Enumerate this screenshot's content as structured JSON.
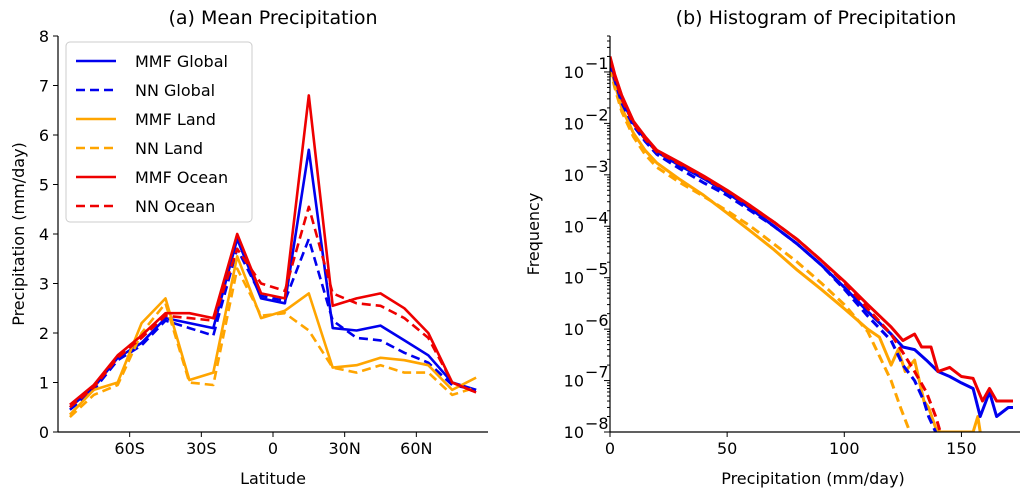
{
  "chart_data": [
    {
      "type": "line",
      "title": "(a) Mean Precipitation",
      "xlabel": "Latitude",
      "ylabel": "Precipitation (mm/day)",
      "xlim": [
        -90,
        90
      ],
      "ylim": [
        0,
        8
      ],
      "xticks": [
        {
          "value": -60,
          "label": "60S"
        },
        {
          "value": -30,
          "label": "30S"
        },
        {
          "value": 0,
          "label": "0"
        },
        {
          "value": 30,
          "label": "30N"
        },
        {
          "value": 60,
          "label": "60N"
        }
      ],
      "yticks": [
        "0",
        "1",
        "2",
        "3",
        "4",
        "5",
        "6",
        "7",
        "8"
      ],
      "legend_position": "upper-left",
      "x": [
        -85,
        -75,
        -65,
        -55,
        -45,
        -35,
        -25,
        -15,
        -5,
        5,
        15,
        25,
        35,
        45,
        55,
        65,
        75,
        85
      ],
      "series": [
        {
          "name": "MMF Global",
          "color": "#0000ee",
          "dash": "solid",
          "values": [
            0.5,
            0.9,
            1.5,
            1.8,
            2.3,
            2.2,
            2.1,
            3.9,
            2.7,
            2.6,
            5.7,
            2.1,
            2.05,
            2.15,
            1.85,
            1.55,
            1.0,
            0.85
          ]
        },
        {
          "name": "NN Global",
          "color": "#0000ee",
          "dash": "dashed",
          "values": [
            0.45,
            0.85,
            1.45,
            1.75,
            2.25,
            2.1,
            1.95,
            3.7,
            2.75,
            2.65,
            3.9,
            2.25,
            1.9,
            1.85,
            1.6,
            1.4,
            0.95,
            0.85
          ]
        },
        {
          "name": "MMF Land",
          "color": "#ffa500",
          "dash": "solid",
          "values": [
            0.35,
            0.85,
            1.0,
            2.2,
            2.7,
            1.05,
            1.2,
            3.55,
            2.3,
            2.45,
            2.8,
            1.3,
            1.35,
            1.5,
            1.45,
            1.35,
            0.85,
            1.1
          ]
        },
        {
          "name": "NN Land",
          "color": "#ffa500",
          "dash": "dashed",
          "values": [
            0.3,
            0.75,
            0.95,
            2.0,
            2.6,
            1.0,
            0.95,
            3.3,
            2.35,
            2.4,
            2.05,
            1.3,
            1.2,
            1.35,
            1.2,
            1.2,
            0.75,
            0.9
          ]
        },
        {
          "name": "MMF Ocean",
          "color": "#ee0000",
          "dash": "solid",
          "values": [
            0.55,
            0.95,
            1.55,
            1.95,
            2.4,
            2.4,
            2.3,
            4.0,
            2.8,
            2.7,
            6.8,
            2.55,
            2.7,
            2.8,
            2.5,
            2.0,
            1.0,
            0.8
          ]
        },
        {
          "name": "NN Ocean",
          "color": "#ee0000",
          "dash": "dashed",
          "values": [
            0.5,
            0.9,
            1.5,
            1.9,
            2.35,
            2.3,
            2.25,
            3.7,
            3.0,
            2.85,
            4.55,
            2.8,
            2.6,
            2.55,
            2.3,
            1.9,
            1.0,
            0.8
          ]
        }
      ]
    },
    {
      "type": "line",
      "title": "(b) Histogram of Precipitation",
      "xlabel": "Precipitation (mm/day)",
      "ylabel": "Frequency",
      "xlim": [
        0,
        175
      ],
      "ylim": [
        1e-08,
        0.5
      ],
      "yscale": "log",
      "xticks": [
        {
          "value": 0,
          "label": "0"
        },
        {
          "value": 50,
          "label": "50"
        },
        {
          "value": 100,
          "label": "100"
        },
        {
          "value": 150,
          "label": "150"
        }
      ],
      "yticks": [
        {
          "exp": -8,
          "base": "10",
          "sup": "−8"
        },
        {
          "exp": -7,
          "base": "10",
          "sup": "−7"
        },
        {
          "exp": -6,
          "base": "10",
          "sup": "−6"
        },
        {
          "exp": -5,
          "base": "10",
          "sup": "−5"
        },
        {
          "exp": -4,
          "base": "10",
          "sup": "−4"
        },
        {
          "exp": -3,
          "base": "10",
          "sup": "−3"
        },
        {
          "exp": -2,
          "base": "10",
          "sup": "−2"
        },
        {
          "exp": -1,
          "base": "10",
          "sup": "−1"
        }
      ],
      "series": [
        {
          "name": "MMF Global",
          "color": "#0000ee",
          "dash": "solid",
          "points": [
            [
              0,
              0.17
            ],
            [
              2,
              0.08
            ],
            [
              5,
              0.03
            ],
            [
              10,
              0.01
            ],
            [
              15,
              0.005
            ],
            [
              20,
              0.0028
            ],
            [
              30,
              0.0015
            ],
            [
              40,
              0.00085
            ],
            [
              50,
              0.00045
            ],
            [
              60,
              0.00022
            ],
            [
              70,
              0.0001
            ],
            [
              80,
              4.5e-05
            ],
            [
              90,
              1.8e-05
            ],
            [
              100,
              6.5e-06
            ],
            [
              110,
              2.2e-06
            ],
            [
              120,
              8e-07
            ],
            [
              125,
              4.5e-07
            ],
            [
              130,
              4e-07
            ],
            [
              135,
              2.5e-07
            ],
            [
              140,
              1.5e-07
            ],
            [
              145,
              1.2e-07
            ],
            [
              150,
              9e-08
            ],
            [
              155,
              7e-08
            ],
            [
              158,
              2e-08
            ],
            [
              162,
              6e-08
            ],
            [
              165,
              2e-08
            ],
            [
              170,
              3e-08
            ],
            [
              172,
              3e-08
            ]
          ]
        },
        {
          "name": "NN Global",
          "color": "#0000ee",
          "dash": "dashed",
          "points": [
            [
              0,
              0.15
            ],
            [
              2,
              0.07
            ],
            [
              5,
              0.025
            ],
            [
              10,
              0.009
            ],
            [
              15,
              0.0045
            ],
            [
              20,
              0.0025
            ],
            [
              30,
              0.0013
            ],
            [
              40,
              0.0007
            ],
            [
              50,
              0.0004
            ],
            [
              60,
              0.0002
            ],
            [
              70,
              0.0001
            ],
            [
              80,
              4.5e-05
            ],
            [
              90,
              1.8e-05
            ],
            [
              100,
              6e-06
            ],
            [
              110,
              1.8e-06
            ],
            [
              120,
              6e-07
            ],
            [
              125,
              2e-07
            ],
            [
              130,
              1e-07
            ],
            [
              134,
              4e-08
            ],
            [
              136,
              2e-08
            ],
            [
              139,
              1e-08
            ]
          ]
        },
        {
          "name": "MMF Land",
          "color": "#ffa500",
          "dash": "solid",
          "points": [
            [
              0,
              0.14
            ],
            [
              2,
              0.06
            ],
            [
              5,
              0.02
            ],
            [
              10,
              0.0065
            ],
            [
              15,
              0.003
            ],
            [
              20,
              0.0017
            ],
            [
              30,
              0.0008
            ],
            [
              40,
              0.0004
            ],
            [
              50,
              0.00018
            ],
            [
              60,
              8e-05
            ],
            [
              70,
              3.5e-05
            ],
            [
              80,
              1.4e-05
            ],
            [
              90,
              6e-06
            ],
            [
              100,
              2.5e-06
            ],
            [
              110,
              1e-06
            ],
            [
              115,
              7e-07
            ],
            [
              120,
              2e-07
            ],
            [
              123,
              4e-07
            ],
            [
              126,
              1.5e-07
            ],
            [
              130,
              2.5e-07
            ],
            [
              134,
              4e-08
            ],
            [
              136,
              3e-08
            ],
            [
              139,
              1.2e-08
            ],
            [
              141,
              1e-08
            ],
            [
              155,
              1e-08
            ],
            [
              157,
              2e-08
            ],
            [
              158,
              1e-08
            ]
          ]
        },
        {
          "name": "NN Land",
          "color": "#ffa500",
          "dash": "dashed",
          "points": [
            [
              0,
              0.12
            ],
            [
              2,
              0.05
            ],
            [
              5,
              0.017
            ],
            [
              10,
              0.0055
            ],
            [
              15,
              0.0025
            ],
            [
              20,
              0.0014
            ],
            [
              30,
              0.0007
            ],
            [
              40,
              0.00038
            ],
            [
              50,
              0.0002
            ],
            [
              60,
              0.0001
            ],
            [
              70,
              4.5e-05
            ],
            [
              80,
              2e-05
            ],
            [
              90,
              8e-06
            ],
            [
              100,
              3e-06
            ],
            [
              110,
              9e-07
            ],
            [
              115,
              3e-07
            ],
            [
              120,
              1e-07
            ],
            [
              124,
              3e-08
            ],
            [
              128,
              1e-08
            ]
          ]
        },
        {
          "name": "MMF Ocean",
          "color": "#ee0000",
          "dash": "solid",
          "points": [
            [
              0,
              0.2
            ],
            [
              2,
              0.09
            ],
            [
              5,
              0.035
            ],
            [
              10,
              0.011
            ],
            [
              15,
              0.0055
            ],
            [
              20,
              0.003
            ],
            [
              30,
              0.0017
            ],
            [
              40,
              0.00095
            ],
            [
              50,
              0.0005
            ],
            [
              60,
              0.00025
            ],
            [
              70,
              0.00012
            ],
            [
              80,
              5.5e-05
            ],
            [
              90,
              2.2e-05
            ],
            [
              100,
              8.5e-06
            ],
            [
              110,
              3e-06
            ],
            [
              120,
              1.1e-06
            ],
            [
              125,
              6e-07
            ],
            [
              130,
              8e-07
            ],
            [
              133,
              4.5e-07
            ],
            [
              137,
              4.5e-07
            ],
            [
              140,
              1.5e-07
            ],
            [
              145,
              1.8e-07
            ],
            [
              150,
              1.2e-07
            ],
            [
              155,
              1.1e-07
            ],
            [
              159,
              4e-08
            ],
            [
              162,
              7e-08
            ],
            [
              165,
              4e-08
            ],
            [
              170,
              4e-08
            ],
            [
              172,
              4e-08
            ]
          ]
        },
        {
          "name": "NN Ocean",
          "color": "#ee0000",
          "dash": "dashed",
          "points": [
            [
              0,
              0.18
            ],
            [
              2,
              0.08
            ],
            [
              5,
              0.03
            ],
            [
              10,
              0.01
            ],
            [
              15,
              0.005
            ],
            [
              20,
              0.0028
            ],
            [
              30,
              0.0016
            ],
            [
              40,
              0.0009
            ],
            [
              50,
              0.00048
            ],
            [
              60,
              0.00024
            ],
            [
              70,
              0.00012
            ],
            [
              80,
              5.5e-05
            ],
            [
              90,
              2.2e-05
            ],
            [
              100,
              8e-06
            ],
            [
              110,
              2.5e-06
            ],
            [
              120,
              8e-07
            ],
            [
              125,
              3.5e-07
            ],
            [
              130,
              1.5e-07
            ],
            [
              135,
              6e-08
            ],
            [
              139,
              2e-08
            ],
            [
              141,
              1e-08
            ]
          ]
        }
      ]
    }
  ]
}
